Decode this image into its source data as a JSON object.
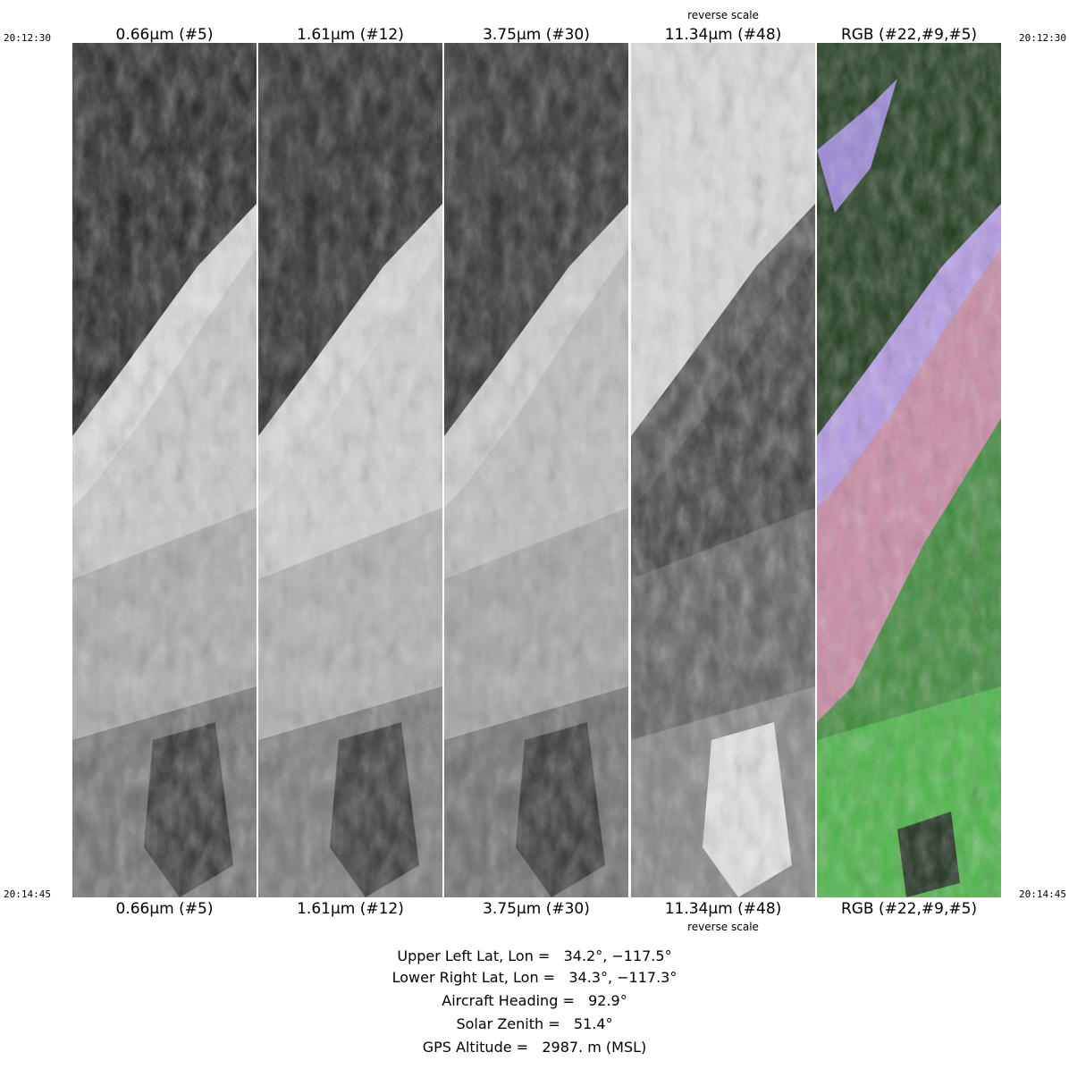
{
  "times": {
    "start": "20:12:30",
    "end": "20:14:45"
  },
  "bands": [
    {
      "label": "0.66μm (#5)",
      "scale_note": "",
      "rendering": "grayscale"
    },
    {
      "label": "1.61μm (#12)",
      "scale_note": "",
      "rendering": "grayscale"
    },
    {
      "label": "3.75μm (#30)",
      "scale_note": "",
      "rendering": "grayscale"
    },
    {
      "label": "11.34μm (#48)",
      "scale_note": "reverse scale",
      "rendering": "grayscale-inverted"
    },
    {
      "label": "RGB (#22,#9,#5)",
      "scale_note": "",
      "rendering": "false-color"
    }
  ],
  "info": [
    {
      "label": "Upper Left Lat, Lon =",
      "value": "34.2°, −117.5°"
    },
    {
      "label": "Lower Right Lat, Lon =",
      "value": "34.3°, −117.3°"
    },
    {
      "label": "Aircraft Heading =",
      "value": "92.9°"
    },
    {
      "label": "Solar Zenith =",
      "value": "51.4°"
    },
    {
      "label": "GPS Altitude =",
      "value": "2987. m (MSL)"
    }
  ],
  "colors": {
    "background": "#ffffff",
    "rgb_vegetation": "#3fa83a",
    "rgb_urban": "#c98aa6",
    "rgb_water_river": "#b49be6"
  }
}
